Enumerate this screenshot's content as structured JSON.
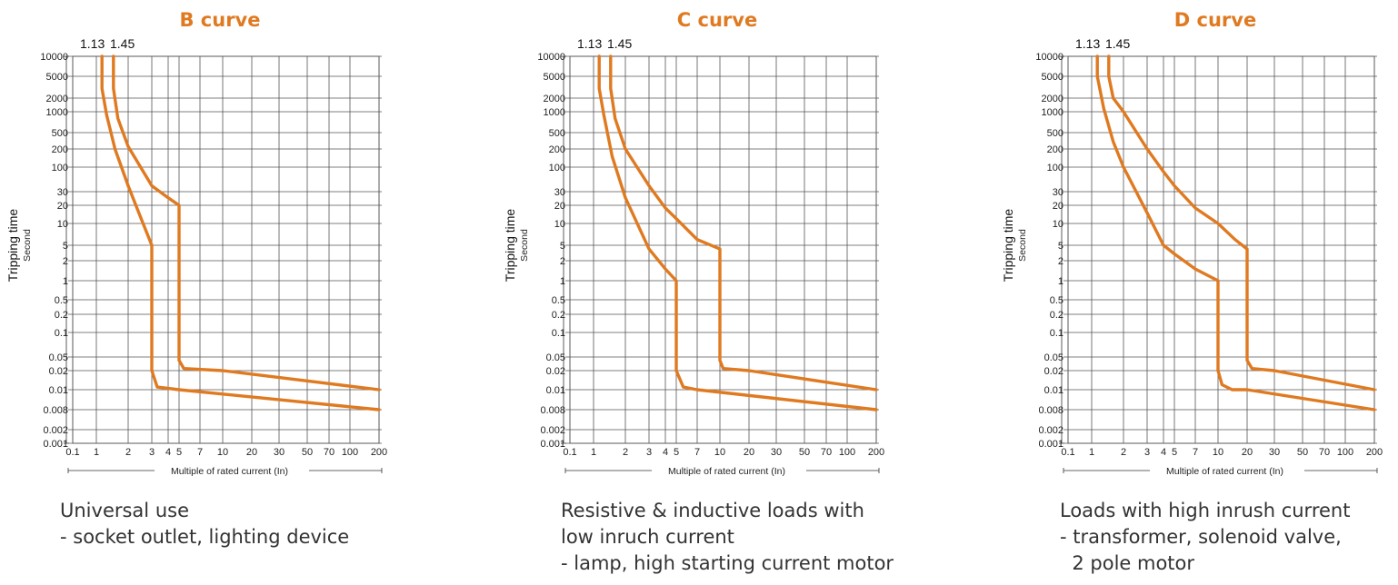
{
  "accent_color": "#e07a21",
  "grid_color": "#555555",
  "y_axis_label": "Tripping time",
  "y_axis_unit": "Second",
  "x_axis_label": "Multiple of rated current (In)",
  "top_labels": [
    "1.13",
    "1.45"
  ],
  "y_ticks": [
    "10000",
    "5000",
    "2000",
    "1000",
    "500",
    "200",
    "100",
    "30",
    "20",
    "10",
    "5",
    "2",
    "1",
    "0.5",
    "0.2",
    "0.1",
    "0.05",
    "0.02",
    "0.01",
    "0.008",
    "0.002",
    "0.001"
  ],
  "x_ticks": [
    "0.1",
    "1",
    "2",
    "3",
    "4",
    "5",
    "7",
    "10",
    "20",
    "30",
    "50",
    "70",
    "100",
    "200"
  ],
  "chart_data": [
    {
      "type": "line",
      "title": "B curve",
      "xlabel": "Multiple of rated current (In)",
      "ylabel": "Tripping time Second",
      "x_scale": "log",
      "y_scale": "log",
      "xlim": [
        0.1,
        200
      ],
      "ylim": [
        0.001,
        10000
      ],
      "grid": true,
      "series": [
        {
          "values": [
            [
              1.13,
              10000
            ],
            [
              1.13,
              3000
            ],
            [
              1.25,
              900
            ],
            [
              1.5,
              200
            ],
            [
              2,
              40
            ],
            [
              2.5,
              12
            ],
            [
              3,
              5
            ],
            [
              3,
              0.02
            ],
            [
              3.3,
              0.011
            ],
            [
              5,
              0.01
            ],
            [
              200,
              0.008
            ]
          ]
        },
        {
          "values": [
            [
              1.45,
              10000
            ],
            [
              1.45,
              3000
            ],
            [
              1.6,
              800
            ],
            [
              2,
              230
            ],
            [
              3,
              40
            ],
            [
              4,
              25
            ],
            [
              5,
              20
            ],
            [
              5,
              0.04
            ],
            [
              5.4,
              0.023
            ],
            [
              10,
              0.02
            ],
            [
              200,
              0.01
            ]
          ]
        }
      ],
      "description": [
        "Universal use",
        "- socket outlet, lighting device"
      ]
    },
    {
      "type": "line",
      "title": "C curve",
      "xlabel": "Multiple of rated current (In)",
      "ylabel": "Tripping time Second",
      "x_scale": "log",
      "y_scale": "log",
      "xlim": [
        0.1,
        200
      ],
      "ylim": [
        0.001,
        10000
      ],
      "grid": true,
      "series": [
        {
          "values": [
            [
              1.13,
              10000
            ],
            [
              1.13,
              3000
            ],
            [
              1.25,
              900
            ],
            [
              1.5,
              150
            ],
            [
              2,
              25
            ],
            [
              3,
              4
            ],
            [
              4,
              1.5
            ],
            [
              5,
              1
            ],
            [
              5,
              0.02
            ],
            [
              5.6,
              0.011
            ],
            [
              7,
              0.01
            ],
            [
              200,
              0.008
            ]
          ]
        },
        {
          "values": [
            [
              1.45,
              10000
            ],
            [
              1.45,
              3000
            ],
            [
              1.6,
              800
            ],
            [
              2,
              200
            ],
            [
              3,
              40
            ],
            [
              4,
              18
            ],
            [
              5,
              12
            ],
            [
              7,
              6
            ],
            [
              10,
              4
            ],
            [
              10,
              0.04
            ],
            [
              10.8,
              0.023
            ],
            [
              20,
              0.02
            ],
            [
              200,
              0.01
            ]
          ]
        }
      ],
      "description": [
        "Resistive & inductive loads with",
        "low inruch current",
        "- lamp, high starting current motor"
      ]
    },
    {
      "type": "line",
      "title": "D curve",
      "xlabel": "Multiple of rated current (In)",
      "ylabel": "Tripping time Second",
      "x_scale": "log",
      "y_scale": "log",
      "xlim": [
        0.1,
        200
      ],
      "ylim": [
        0.001,
        10000
      ],
      "grid": true,
      "series": [
        {
          "values": [
            [
              1.13,
              10000
            ],
            [
              1.13,
              5000
            ],
            [
              1.3,
              1200
            ],
            [
              1.6,
              300
            ],
            [
              2,
              100
            ],
            [
              3,
              15
            ],
            [
              4,
              5
            ],
            [
              5,
              3
            ],
            [
              7,
              1.5
            ],
            [
              10,
              1
            ],
            [
              10,
              0.02
            ],
            [
              11,
              0.012
            ],
            [
              14,
              0.01
            ],
            [
              20,
              0.01
            ],
            [
              200,
              0.008
            ]
          ]
        },
        {
          "values": [
            [
              1.45,
              10000
            ],
            [
              1.45,
              5000
            ],
            [
              1.6,
              2000
            ],
            [
              2,
              1000
            ],
            [
              3,
              200
            ],
            [
              4,
              80
            ],
            [
              5,
              40
            ],
            [
              7,
              18
            ],
            [
              10,
              10
            ],
            [
              15,
              6
            ],
            [
              20,
              4
            ],
            [
              20,
              0.04
            ],
            [
              21.5,
              0.023
            ],
            [
              30,
              0.02
            ],
            [
              200,
              0.01
            ]
          ]
        }
      ],
      "description": [
        "Loads with high inrush current",
        "- transformer, solenoid valve,",
        "  2 pole motor"
      ]
    }
  ]
}
